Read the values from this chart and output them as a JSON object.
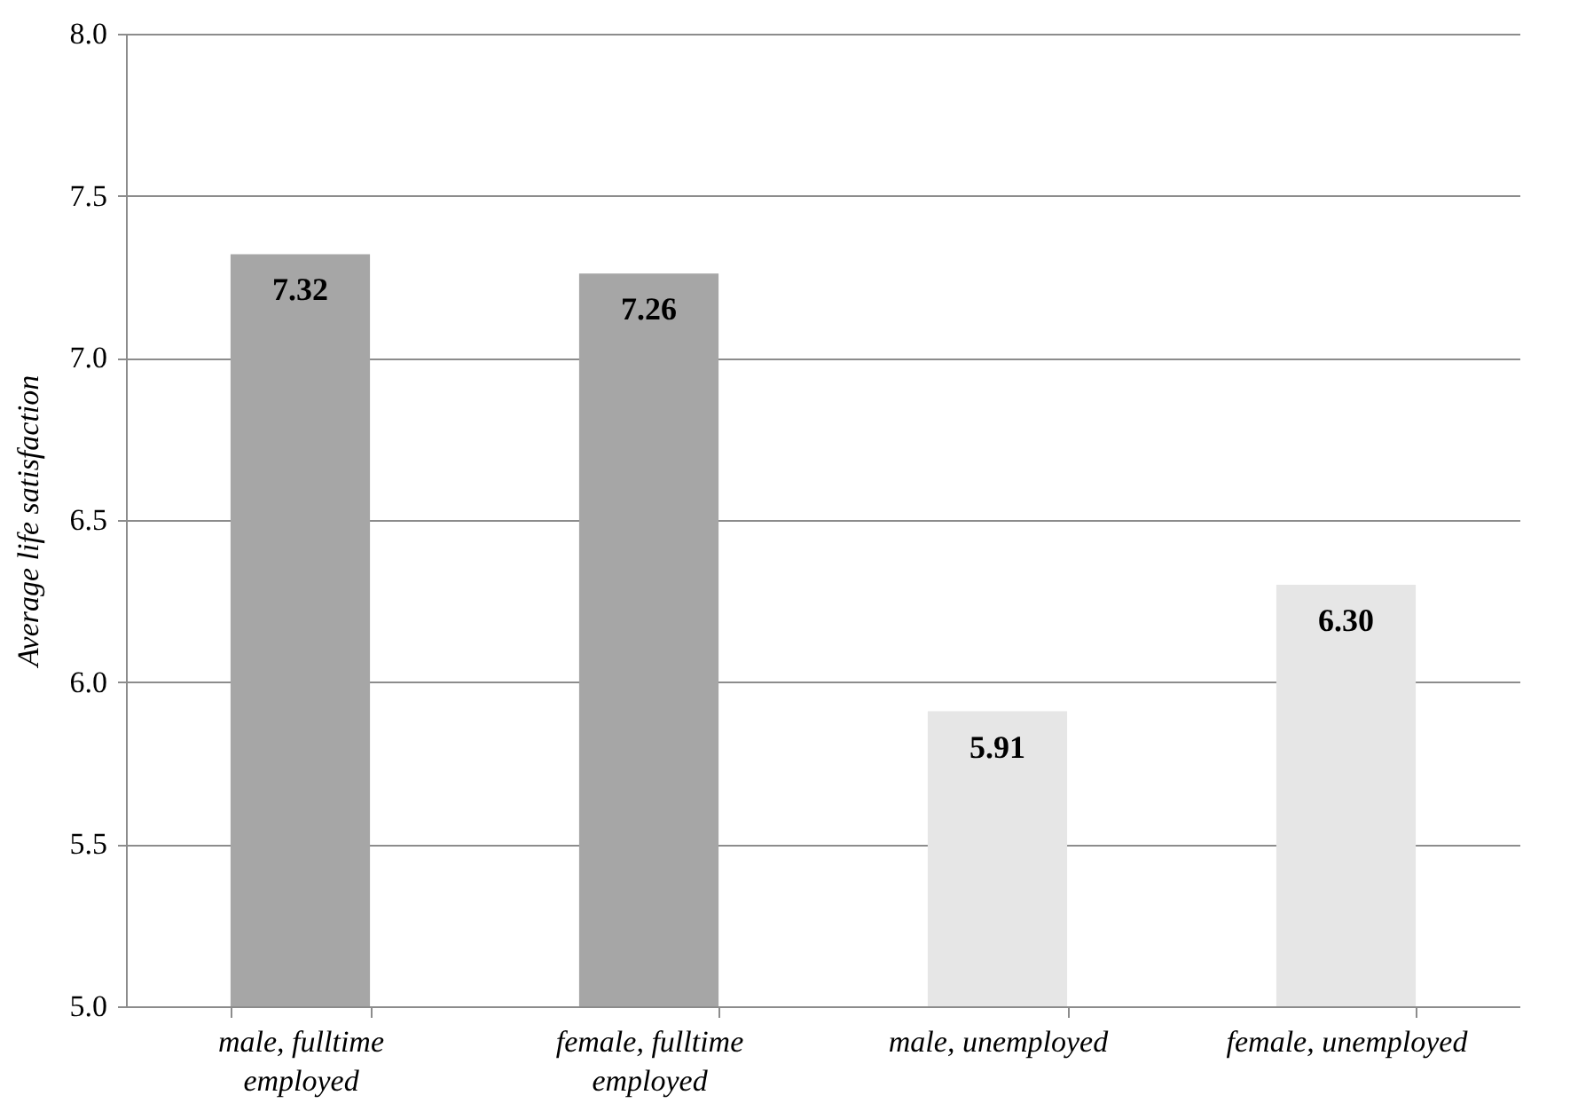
{
  "chart_data": {
    "type": "bar",
    "ylabel": "Average life satisfaction",
    "categories": [
      "male, fulltime employed",
      "female, fulltime employed",
      "male, unemployed",
      "female, unemployed"
    ],
    "values": [
      7.32,
      7.26,
      5.91,
      6.3
    ],
    "colors": [
      "#a6a6a6",
      "#a6a6a6",
      "#e6e6e6",
      "#e6e6e6"
    ],
    "value_labels": [
      "7.32",
      "7.26",
      "5.91",
      "6.30"
    ],
    "ylim": [
      5.0,
      8.0
    ],
    "yticks": [
      {
        "value": 5,
        "label": "5.0"
      },
      {
        "value": 5.5,
        "label": "5.5"
      },
      {
        "value": 6,
        "label": "6.0"
      },
      {
        "value": 6.5,
        "label": "6.5"
      },
      {
        "value": 7,
        "label": "7.0"
      },
      {
        "value": 7.5,
        "label": "7.5"
      },
      {
        "value": 8,
        "label": "8.0"
      }
    ],
    "grid": "y"
  }
}
